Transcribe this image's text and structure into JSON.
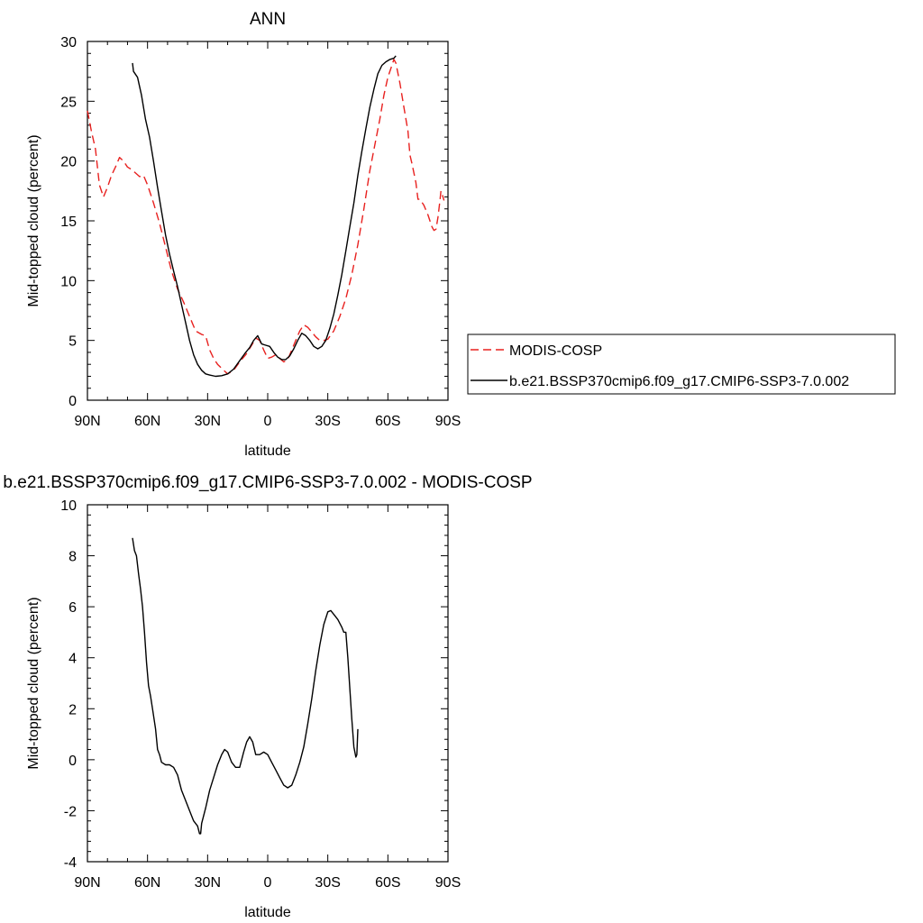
{
  "chart_data": [
    {
      "type": "line",
      "title": "ANN",
      "xlabel": "latitude",
      "ylabel": "Mid-topped cloud (percent)",
      "xlim": [
        90,
        -90
      ],
      "ylim": [
        0,
        30
      ],
      "x_ticks": [
        {
          "value": 90,
          "label": "90N"
        },
        {
          "value": 60,
          "label": "60N"
        },
        {
          "value": 30,
          "label": "30N"
        },
        {
          "value": 0,
          "label": "0"
        },
        {
          "value": -30,
          "label": "30S"
        },
        {
          "value": -60,
          "label": "60S"
        },
        {
          "value": -90,
          "label": "90S"
        }
      ],
      "y_ticks": [
        {
          "value": 0,
          "label": "0"
        },
        {
          "value": 5,
          "label": "5"
        },
        {
          "value": 10,
          "label": "10"
        },
        {
          "value": 15,
          "label": "15"
        },
        {
          "value": 20,
          "label": "20"
        },
        {
          "value": 25,
          "label": "25"
        },
        {
          "value": 30,
          "label": "30"
        }
      ],
      "grid": false,
      "legend_position": "right",
      "series": [
        {
          "name": "MODIS-COSP",
          "color": "#e8211f",
          "dash": "dashed",
          "points": [
            [
              90,
              24.2
            ],
            [
              88,
              22.5
            ],
            [
              86,
              21.0
            ],
            [
              84,
              18.0
            ],
            [
              82,
              17.0
            ],
            [
              80,
              17.8
            ],
            [
              78,
              18.8
            ],
            [
              76,
              19.5
            ],
            [
              74,
              20.3
            ],
            [
              72,
              20.0
            ],
            [
              70,
              19.5
            ],
            [
              68,
              19.3
            ],
            [
              66,
              19.0
            ],
            [
              64,
              18.7
            ],
            [
              62,
              18.8
            ],
            [
              60,
              18.0
            ],
            [
              57,
              16.5
            ],
            [
              54,
              14.8
            ],
            [
              51,
              12.8
            ],
            [
              48,
              10.8
            ],
            [
              45,
              9.3
            ],
            [
              42,
              8.2
            ],
            [
              39,
              7.0
            ],
            [
              36,
              5.8
            ],
            [
              33,
              5.5
            ],
            [
              31,
              5.4
            ],
            [
              29,
              4.2
            ],
            [
              27,
              3.5
            ],
            [
              25,
              3.0
            ],
            [
              22,
              2.5
            ],
            [
              20,
              2.2
            ],
            [
              17,
              2.5
            ],
            [
              14,
              3.2
            ],
            [
              11,
              3.8
            ],
            [
              8,
              4.6
            ],
            [
              6,
              5.2
            ],
            [
              4,
              5.0
            ],
            [
              2,
              4.2
            ],
            [
              0,
              3.5
            ],
            [
              -2,
              3.6
            ],
            [
              -4,
              3.8
            ],
            [
              -6,
              3.5
            ],
            [
              -8,
              3.2
            ],
            [
              -10,
              3.4
            ],
            [
              -12,
              4.2
            ],
            [
              -14,
              5.0
            ],
            [
              -16,
              5.8
            ],
            [
              -18,
              6.3
            ],
            [
              -20,
              6.1
            ],
            [
              -22,
              5.7
            ],
            [
              -24,
              5.3
            ],
            [
              -26,
              5.0
            ],
            [
              -28,
              5.0
            ],
            [
              -30,
              5.1
            ],
            [
              -33,
              5.8
            ],
            [
              -36,
              7.0
            ],
            [
              -39,
              8.5
            ],
            [
              -42,
              10.5
            ],
            [
              -45,
              13.0
            ],
            [
              -48,
              16.0
            ],
            [
              -51,
              19.2
            ],
            [
              -54,
              21.8
            ],
            [
              -56,
              23.5
            ],
            [
              -58,
              25.5
            ],
            [
              -60,
              27.0
            ],
            [
              -62,
              28.0
            ],
            [
              -63,
              28.5
            ],
            [
              -64,
              28.2
            ],
            [
              -66,
              26.5
            ],
            [
              -68,
              24.5
            ],
            [
              -70,
              22.5
            ],
            [
              -71,
              20.5
            ],
            [
              -72,
              19.8
            ],
            [
              -74,
              18.2
            ],
            [
              -75,
              16.8
            ],
            [
              -76,
              16.8
            ],
            [
              -78,
              16.3
            ],
            [
              -80,
              15.5
            ],
            [
              -82,
              14.5
            ],
            [
              -83,
              14.2
            ],
            [
              -84,
              14.3
            ],
            [
              -85,
              15.3
            ],
            [
              -86,
              16.7
            ],
            [
              -86.5,
              17.5
            ],
            [
              -87,
              17.3
            ],
            [
              -88,
              16.7
            ]
          ]
        },
        {
          "name": "b.e21.BSSP370cmip6.f09_g17.CMIP6-SSP3-7.0.002",
          "color": "#000000",
          "dash": "solid",
          "points": [
            [
              67.5,
              28.2
            ],
            [
              67,
              27.5
            ],
            [
              65,
              27.0
            ],
            [
              63,
              25.5
            ],
            [
              61,
              23.5
            ],
            [
              59,
              22.0
            ],
            [
              57,
              20.0
            ],
            [
              55,
              17.8
            ],
            [
              53,
              15.8
            ],
            [
              51,
              13.8
            ],
            [
              49,
              12.2
            ],
            [
              47,
              10.8
            ],
            [
              45,
              9.5
            ],
            [
              43,
              8.0
            ],
            [
              41,
              6.5
            ],
            [
              39,
              5.0
            ],
            [
              37,
              3.8
            ],
            [
              35,
              3.0
            ],
            [
              33,
              2.5
            ],
            [
              31,
              2.2
            ],
            [
              29,
              2.1
            ],
            [
              26,
              2.0
            ],
            [
              23,
              2.05
            ],
            [
              20,
              2.2
            ],
            [
              17,
              2.6
            ],
            [
              14,
              3.3
            ],
            [
              11,
              4.0
            ],
            [
              9,
              4.4
            ],
            [
              7,
              5.0
            ],
            [
              5,
              5.4
            ],
            [
              3,
              4.7
            ],
            [
              1,
              4.6
            ],
            [
              -1,
              4.5
            ],
            [
              -3,
              4.0
            ],
            [
              -5,
              3.6
            ],
            [
              -7,
              3.4
            ],
            [
              -9,
              3.4
            ],
            [
              -11,
              3.7
            ],
            [
              -13,
              4.3
            ],
            [
              -15,
              5.0
            ],
            [
              -17,
              5.6
            ],
            [
              -19,
              5.4
            ],
            [
              -21,
              5.0
            ],
            [
              -23,
              4.5
            ],
            [
              -25,
              4.3
            ],
            [
              -27,
              4.5
            ],
            [
              -29,
              5.0
            ],
            [
              -31,
              6.0
            ],
            [
              -33,
              7.2
            ],
            [
              -35,
              8.8
            ],
            [
              -37,
              10.5
            ],
            [
              -39,
              12.5
            ],
            [
              -41,
              14.5
            ],
            [
              -43,
              16.5
            ],
            [
              -45,
              18.8
            ],
            [
              -47,
              20.8
            ],
            [
              -49,
              22.7
            ],
            [
              -51,
              24.5
            ],
            [
              -53,
              26.0
            ],
            [
              -55,
              27.3
            ],
            [
              -57,
              28.0
            ],
            [
              -59,
              28.3
            ],
            [
              -61,
              28.5
            ],
            [
              -63,
              28.6
            ],
            [
              -64,
              28.8
            ]
          ]
        }
      ]
    },
    {
      "type": "line",
      "title": "b.e21.BSSP370cmip6.f09_g17.CMIP6-SSP3-7.0.002 - MODIS-COSP",
      "xlabel": "latitude",
      "ylabel": "Mid-topped cloud (percent)",
      "xlim": [
        90,
        -90
      ],
      "ylim": [
        -4,
        10
      ],
      "x_ticks": [
        {
          "value": 90,
          "label": "90N"
        },
        {
          "value": 60,
          "label": "60N"
        },
        {
          "value": 30,
          "label": "30N"
        },
        {
          "value": 0,
          "label": "0"
        },
        {
          "value": -30,
          "label": "30S"
        },
        {
          "value": -60,
          "label": "60S"
        },
        {
          "value": -90,
          "label": "90S"
        }
      ],
      "y_ticks": [
        {
          "value": -4,
          "label": "-4"
        },
        {
          "value": -2,
          "label": "-2"
        },
        {
          "value": 0,
          "label": "0"
        },
        {
          "value": 2,
          "label": "2"
        },
        {
          "value": 4,
          "label": "4"
        },
        {
          "value": 6,
          "label": "6"
        },
        {
          "value": 8,
          "label": "8"
        },
        {
          "value": 10,
          "label": "10"
        }
      ],
      "grid": false,
      "series": [
        {
          "color": "#000000",
          "dash": "solid",
          "points": [
            [
              67.5,
              8.7
            ],
            [
              66.5,
              8.2
            ],
            [
              65.5,
              8.0
            ],
            [
              64.5,
              7.3
            ],
            [
              63.5,
              6.7
            ],
            [
              62.5,
              6.0
            ],
            [
              61.5,
              5.0
            ],
            [
              60.5,
              3.8
            ],
            [
              59.5,
              2.9
            ],
            [
              58.5,
              2.5
            ],
            [
              57.5,
              2.0
            ],
            [
              56,
              1.2
            ],
            [
              55,
              0.4
            ],
            [
              54,
              0.2
            ],
            [
              53,
              -0.1
            ],
            [
              51,
              -0.2
            ],
            [
              49,
              -0.2
            ],
            [
              47,
              -0.3
            ],
            [
              45,
              -0.6
            ],
            [
              43,
              -1.2
            ],
            [
              41,
              -1.6
            ],
            [
              39,
              -2.0
            ],
            [
              37,
              -2.4
            ],
            [
              35,
              -2.6
            ],
            [
              34,
              -2.9
            ],
            [
              33.5,
              -2.9
            ],
            [
              33,
              -2.5
            ],
            [
              31,
              -1.9
            ],
            [
              29,
              -1.2
            ],
            [
              27,
              -0.7
            ],
            [
              25,
              -0.2
            ],
            [
              23,
              0.2
            ],
            [
              21.5,
              0.4
            ],
            [
              20,
              0.3
            ],
            [
              18,
              -0.1
            ],
            [
              16,
              -0.3
            ],
            [
              14,
              -0.3
            ],
            [
              12,
              0.3
            ],
            [
              10.5,
              0.7
            ],
            [
              9,
              0.9
            ],
            [
              7.5,
              0.7
            ],
            [
              6,
              0.2
            ],
            [
              4,
              0.2
            ],
            [
              2,
              0.3
            ],
            [
              0,
              0.2
            ],
            [
              -2,
              -0.1
            ],
            [
              -4,
              -0.4
            ],
            [
              -6,
              -0.7
            ],
            [
              -8,
              -1.0
            ],
            [
              -10,
              -1.1
            ],
            [
              -12,
              -1.0
            ],
            [
              -14,
              -0.6
            ],
            [
              -16,
              -0.1
            ],
            [
              -18,
              0.5
            ],
            [
              -20,
              1.4
            ],
            [
              -22,
              2.4
            ],
            [
              -24,
              3.5
            ],
            [
              -26,
              4.5
            ],
            [
              -28,
              5.3
            ],
            [
              -30,
              5.8
            ],
            [
              -31.5,
              5.85
            ],
            [
              -33,
              5.7
            ],
            [
              -35,
              5.5
            ],
            [
              -37,
              5.2
            ],
            [
              -38,
              5.0
            ],
            [
              -39,
              5.0
            ],
            [
              -40,
              4.0
            ],
            [
              -41,
              2.8
            ],
            [
              -42,
              1.6
            ],
            [
              -43,
              0.5
            ],
            [
              -44,
              0.1
            ],
            [
              -44.5,
              0.2
            ],
            [
              -45,
              1.2
            ]
          ]
        }
      ]
    }
  ]
}
